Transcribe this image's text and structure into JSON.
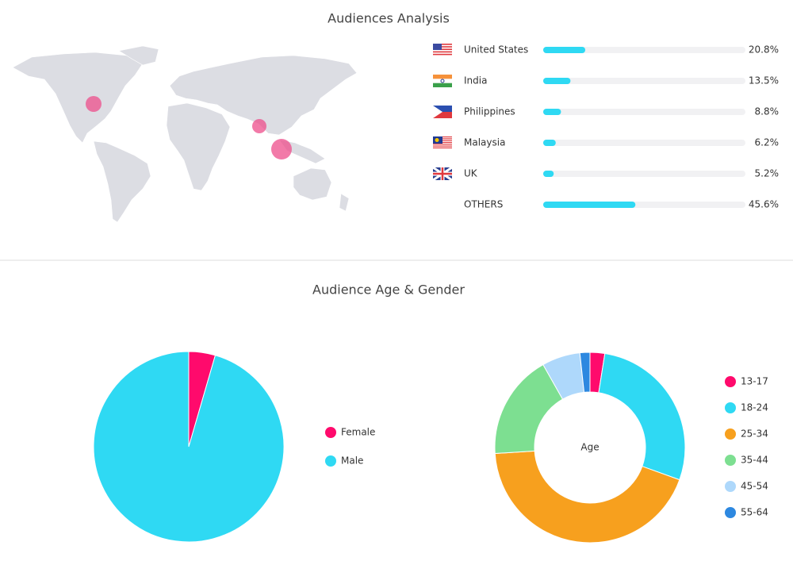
{
  "chart_data": [
    {
      "type": "bar",
      "title": "Audiences Analysis",
      "categories": [
        "United States",
        "India",
        "Philippines",
        "Malaysia",
        "UK",
        "OTHERS"
      ],
      "values": [
        20.8,
        13.5,
        8.8,
        6.2,
        5.2,
        45.6
      ],
      "value_labels": [
        "20.8%",
        "13.5%",
        "8.8%",
        "6.2%",
        "5.2%",
        "45.6%"
      ],
      "xlim": [
        0,
        100
      ],
      "color": "#2fd9f3"
    },
    {
      "type": "pie",
      "title": "Audience Age & Gender",
      "categories": [
        "Female",
        "Male"
      ],
      "values": [
        4.5,
        95.5
      ],
      "colors": [
        "#ff0a6c",
        "#2fd9f3"
      ]
    },
    {
      "type": "donut",
      "center_label": "Age",
      "categories": [
        "13-17",
        "18-24",
        "25-34",
        "35-44",
        "45-54",
        "55-64"
      ],
      "values": [
        2.5,
        28,
        43.5,
        17.8,
        6.5,
        1.7
      ],
      "colors": [
        "#ff0a6c",
        "#2fd9f3",
        "#f7a01e",
        "#7ddf91",
        "#aed8fb",
        "#2d88e0"
      ]
    }
  ]
}
